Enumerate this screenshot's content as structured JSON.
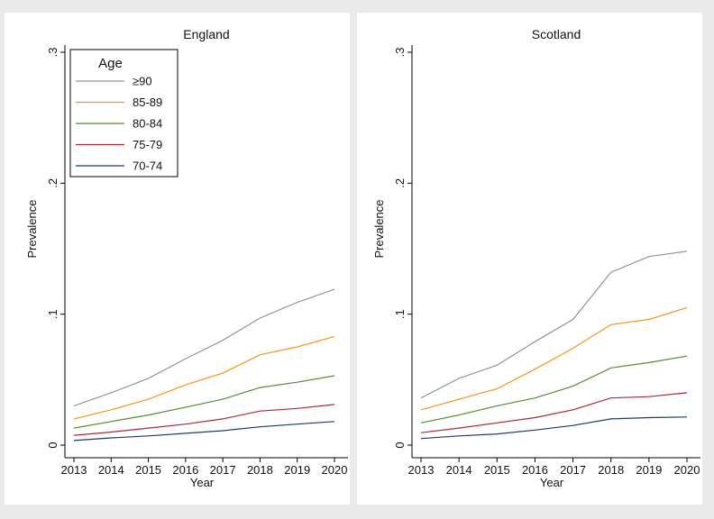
{
  "chart_data": [
    {
      "type": "line",
      "title": "England",
      "xlabel": "Year",
      "ylabel": "Prevalence",
      "x": [
        2013,
        2014,
        2015,
        2016,
        2017,
        2018,
        2019,
        2020
      ],
      "xticks": [
        "2013",
        "2014",
        "2015",
        "2016",
        "2017",
        "2018",
        "2019",
        "2020"
      ],
      "ylim": [
        0,
        0.3
      ],
      "yticks": [
        0,
        0.1,
        0.2,
        0.3
      ],
      "ytick_labels": [
        "0",
        ".1",
        ".2",
        ".3"
      ],
      "grid": false,
      "legend": {
        "title": "Age",
        "placement": "top-left"
      },
      "series": [
        {
          "name": "≥90",
          "color": "#8a9a99",
          "values": [
            0.03,
            0.04,
            0.051,
            0.066,
            0.08,
            0.097,
            0.109,
            0.119
          ]
        },
        {
          "name": "85-89",
          "color": "#f7941d",
          "values": [
            0.02,
            0.027,
            0.035,
            0.046,
            0.055,
            0.069,
            0.075,
            0.083
          ]
        },
        {
          "name": "80-84",
          "color": "#5a8a32",
          "values": [
            0.013,
            0.018,
            0.023,
            0.029,
            0.035,
            0.044,
            0.048,
            0.053
          ]
        },
        {
          "name": "75-79",
          "color": "#a8293a",
          "values": [
            0.0075,
            0.01,
            0.013,
            0.016,
            0.02,
            0.026,
            0.028,
            0.031
          ]
        },
        {
          "name": "70-74",
          "color": "#1f3a63",
          "values": [
            0.0035,
            0.0055,
            0.007,
            0.009,
            0.011,
            0.014,
            0.016,
            0.018
          ]
        }
      ]
    },
    {
      "type": "line",
      "title": "Scotland",
      "xlabel": "Year",
      "ylabel": "Prevalence",
      "x": [
        2013,
        2014,
        2015,
        2016,
        2017,
        2018,
        2019,
        2020
      ],
      "xticks": [
        "2013",
        "2014",
        "2015",
        "2016",
        "2017",
        "2018",
        "2019",
        "2020"
      ],
      "ylim": [
        0,
        0.3
      ],
      "yticks": [
        0,
        0.1,
        0.2,
        0.3
      ],
      "ytick_labels": [
        "0",
        ".1",
        ".2",
        ".3"
      ],
      "grid": false,
      "series": [
        {
          "name": "≥90",
          "color": "#8a9a99",
          "values": [
            0.036,
            0.051,
            0.061,
            0.079,
            0.096,
            0.132,
            0.144,
            0.148
          ]
        },
        {
          "name": "85-89",
          "color": "#f7941d",
          "values": [
            0.027,
            0.035,
            0.043,
            0.058,
            0.074,
            0.092,
            0.096,
            0.105
          ]
        },
        {
          "name": "80-84",
          "color": "#5a8a32",
          "values": [
            0.017,
            0.023,
            0.03,
            0.036,
            0.045,
            0.059,
            0.063,
            0.068
          ]
        },
        {
          "name": "75-79",
          "color": "#a8293a",
          "values": [
            0.0095,
            0.013,
            0.017,
            0.021,
            0.027,
            0.036,
            0.037,
            0.04
          ]
        },
        {
          "name": "70-74",
          "color": "#1f3a63",
          "values": [
            0.005,
            0.007,
            0.0085,
            0.0115,
            0.015,
            0.02,
            0.021,
            0.0215
          ]
        }
      ]
    }
  ]
}
